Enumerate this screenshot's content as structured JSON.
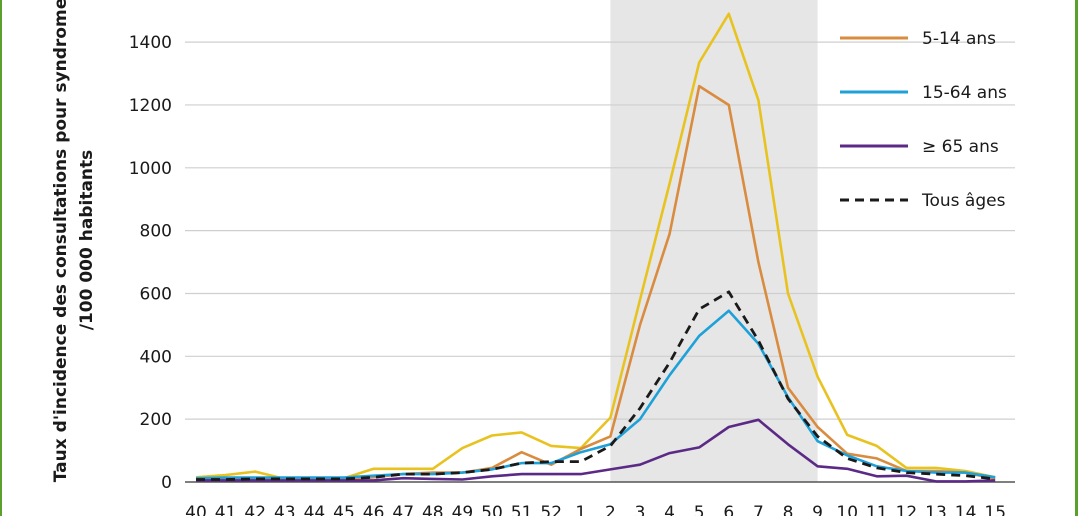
{
  "chart_data": {
    "type": "line",
    "ylabel": "Taux d'incidence des consultations pour syndrome",
    "ylabel2": "/100 000 habitants",
    "x": [
      "40",
      "41",
      "42",
      "43",
      "44",
      "45",
      "46",
      "47",
      "48",
      "49",
      "50",
      "51",
      "52",
      "1",
      "2",
      "3",
      "4",
      "5",
      "6",
      "7",
      "8",
      "9",
      "10",
      "11",
      "12",
      "13",
      "14",
      "15"
    ],
    "ylim": [
      0,
      1500
    ],
    "yticks": [
      0,
      200,
      400,
      600,
      800,
      1000,
      1200,
      1400
    ],
    "yticklabels": [
      "0",
      "200",
      "400",
      "600",
      "800",
      "1000",
      "1200",
      "1400"
    ],
    "grid": true,
    "epidemic_period": [
      "2",
      "9"
    ],
    "legend_position": "top-right",
    "series": [
      {
        "name": "",
        "color": "#e8c320",
        "dash": false,
        "values": [
          15,
          22,
          33,
          10,
          12,
          12,
          42,
          42,
          42,
          108,
          148,
          158,
          115,
          108,
          205,
          580,
          950,
          1335,
          1490,
          1215,
          600,
          335,
          150,
          115,
          45,
          45,
          35,
          15
        ]
      },
      {
        "name": "5-14 ans",
        "color": "#d98c3f",
        "dash": false,
        "values": [
          10,
          10,
          10,
          10,
          10,
          10,
          15,
          25,
          30,
          30,
          45,
          95,
          55,
          105,
          145,
          500,
          790,
          1260,
          1200,
          700,
          300,
          175,
          90,
          75,
          35,
          35,
          30,
          10
        ]
      },
      {
        "name": "15-64 ans",
        "color": "#1ea1d9",
        "dash": false,
        "values": [
          12,
          14,
          14,
          14,
          14,
          14,
          20,
          25,
          25,
          30,
          40,
          60,
          60,
          95,
          120,
          200,
          340,
          465,
          545,
          440,
          270,
          130,
          85,
          50,
          35,
          30,
          30,
          15
        ]
      },
      {
        "name": "≥ 65 ans",
        "color": "#5b2a86",
        "dash": false,
        "values": [
          5,
          5,
          5,
          5,
          5,
          5,
          5,
          12,
          10,
          8,
          18,
          25,
          25,
          25,
          40,
          55,
          92,
          110,
          175,
          198,
          120,
          50,
          42,
          18,
          20,
          2,
          2,
          5
        ]
      },
      {
        "name": "Tous âges",
        "color": "#1a1a1a",
        "dash": true,
        "values": [
          8,
          8,
          10,
          10,
          10,
          10,
          15,
          25,
          25,
          30,
          40,
          60,
          65,
          65,
          115,
          235,
          380,
          550,
          605,
          450,
          265,
          145,
          75,
          45,
          30,
          25,
          20,
          10
        ]
      }
    ]
  }
}
